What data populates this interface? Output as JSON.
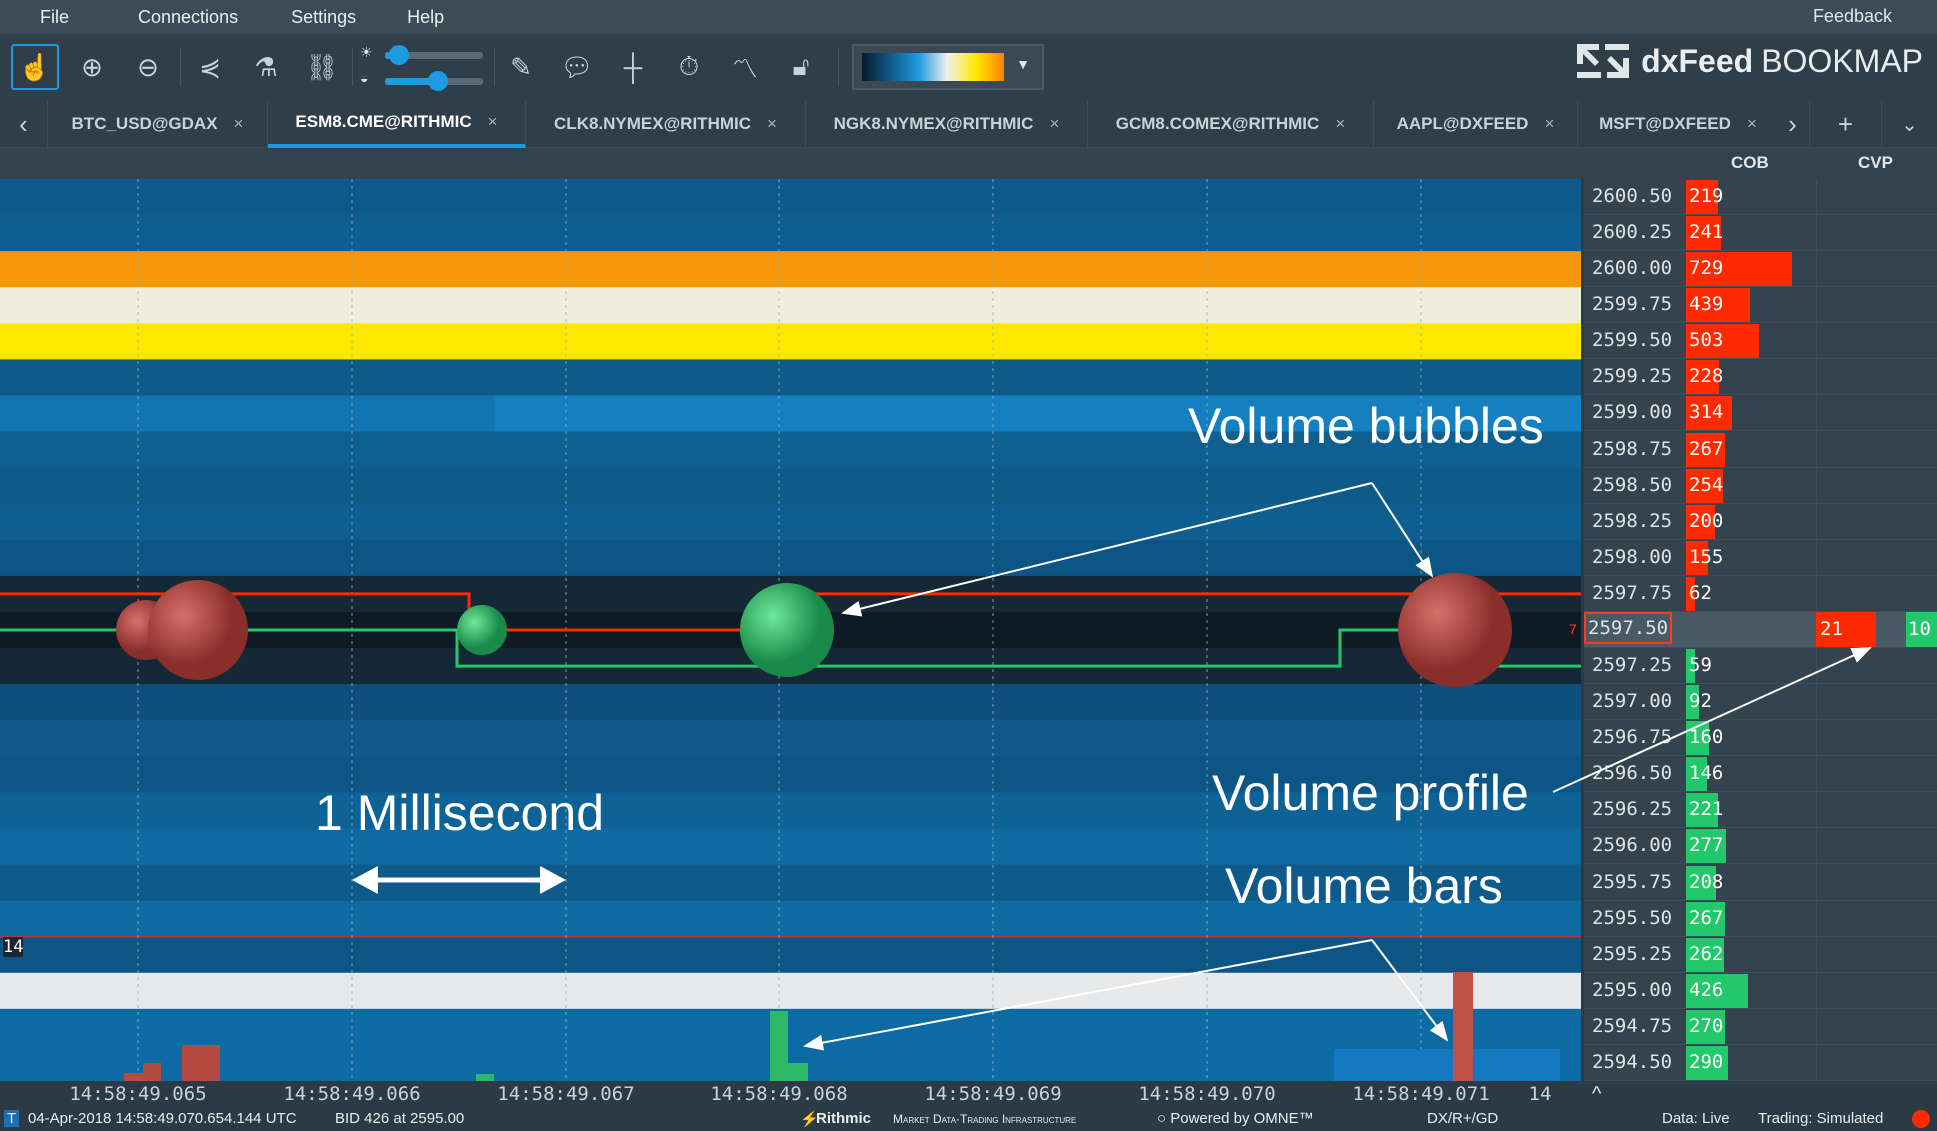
{
  "menu": {
    "items": [
      "File",
      "Connections",
      "Settings",
      "Help"
    ],
    "feedback": "Feedback"
  },
  "toolbar": {
    "icons": [
      "hand-pointer-icon",
      "zoom-in-icon",
      "zoom-out-icon",
      "share-icon",
      "microscope-icon",
      "link-icon",
      "pencil-icon",
      "chat-icon",
      "crosshair-icon",
      "stopwatch-icon",
      "line-chart-icon",
      "lock-icon"
    ],
    "brightness_slider": 0.05,
    "contrast_slider": 0.55
  },
  "logo": {
    "brand": "dxFeed",
    "product": "BOOKMAP"
  },
  "tabs": [
    {
      "label": "BTC_USD@GDAX",
      "active": false
    },
    {
      "label": "ESM8.CME@RITHMIC",
      "active": true
    },
    {
      "label": "CLK8.NYMEX@RITHMIC",
      "active": false
    },
    {
      "label": "NGK8.NYMEX@RITHMIC",
      "active": false
    },
    {
      "label": "GCM8.COMEX@RITHMIC",
      "active": false
    },
    {
      "label": "AAPL@DXFEED",
      "active": false
    },
    {
      "label": "MSFT@DXFEED",
      "active": false
    }
  ],
  "tab_close": "×",
  "columns": {
    "cob": "COB",
    "cvp": "CVP"
  },
  "ladder": {
    "rows": [
      {
        "price": "2600.50",
        "cob": 219,
        "side": "ask"
      },
      {
        "price": "2600.25",
        "cob": 241,
        "side": "ask"
      },
      {
        "price": "2600.00",
        "cob": 729,
        "side": "ask"
      },
      {
        "price": "2599.75",
        "cob": 439,
        "side": "ask"
      },
      {
        "price": "2599.50",
        "cob": 503,
        "side": "ask"
      },
      {
        "price": "2599.25",
        "cob": 228,
        "side": "ask"
      },
      {
        "price": "2599.00",
        "cob": 314,
        "side": "ask"
      },
      {
        "price": "2598.75",
        "cob": 267,
        "side": "ask"
      },
      {
        "price": "2598.50",
        "cob": 254,
        "side": "ask"
      },
      {
        "price": "2598.25",
        "cob": 200,
        "side": "ask"
      },
      {
        "price": "2598.00",
        "cob": 155,
        "side": "ask"
      },
      {
        "price": "2597.75",
        "cob": 62,
        "side": "ask"
      },
      {
        "price": "2597.50",
        "cob": null,
        "side": "last"
      },
      {
        "price": "2597.25",
        "cob": 59,
        "side": "bid"
      },
      {
        "price": "2597.00",
        "cob": 92,
        "side": "bid"
      },
      {
        "price": "2596.75",
        "cob": 160,
        "side": "bid"
      },
      {
        "price": "2596.50",
        "cob": 146,
        "side": "bid"
      },
      {
        "price": "2596.25",
        "cob": 221,
        "side": "bid"
      },
      {
        "price": "2596.00",
        "cob": 277,
        "side": "bid"
      },
      {
        "price": "2595.75",
        "cob": 208,
        "side": "bid"
      },
      {
        "price": "2595.50",
        "cob": 267,
        "side": "bid"
      },
      {
        "price": "2595.25",
        "cob": 262,
        "side": "bid"
      },
      {
        "price": "2595.00",
        "cob": 426,
        "side": "bid"
      },
      {
        "price": "2594.75",
        "cob": 270,
        "side": "bid"
      },
      {
        "price": "2594.50",
        "cob": 290,
        "side": "bid"
      }
    ],
    "cvp_sell": "21",
    "cvp_buy": "10",
    "last_trade_size": "7"
  },
  "colors": {
    "ask": "#ff2a00",
    "bid": "#22c86a",
    "accent": "#1e9be0",
    "bubble_sell": "#b84a44",
    "bubble_buy": "#2eb86a"
  },
  "heatmap_colors": [
    "#0d5a8a",
    "#0e5f90",
    "#f7960a",
    "#efeedd",
    "#ffe800",
    "#0e5b8a",
    "#1580c0",
    "#0f5f90",
    "#0e5a88",
    "#0e5f90",
    "#0d5585",
    "#152836",
    "#0e1a24",
    "#152836",
    "#0e4f7c",
    "#0f5a8a",
    "#0d5585",
    "#0f6296",
    "#0e6aa0",
    "#0e5a8a",
    "#0f6aa2",
    "#0d5585",
    "#e6e8ea",
    "#0e6aa3",
    "#0e6aa3"
  ],
  "chart": {
    "size_label": "14",
    "time_labels": [
      "14:58:49.065",
      "14:58:49.066",
      "14:58:49.067",
      "14:58:49.068",
      "14:58:49.069",
      "14:58:49.070",
      "14:58:49.071",
      "14"
    ],
    "annotations": {
      "bubbles": "Volume bubbles",
      "profile": "Volume profile",
      "bars": "Volume bars",
      "millisecond": "1 Millisecond"
    }
  },
  "status": {
    "datetime": "04-Apr-2018 14:58:49.070.654.144 UTC",
    "bid": "BID 426 at 2595.00",
    "rithmic": "Rithmic",
    "rithmic_tag": "Market Data·Trading Infrastructure",
    "omne": "Powered by OMNE™",
    "feed": "DX/R+/GD",
    "data": "Data: Live",
    "trading": "Trading: Simulated"
  }
}
